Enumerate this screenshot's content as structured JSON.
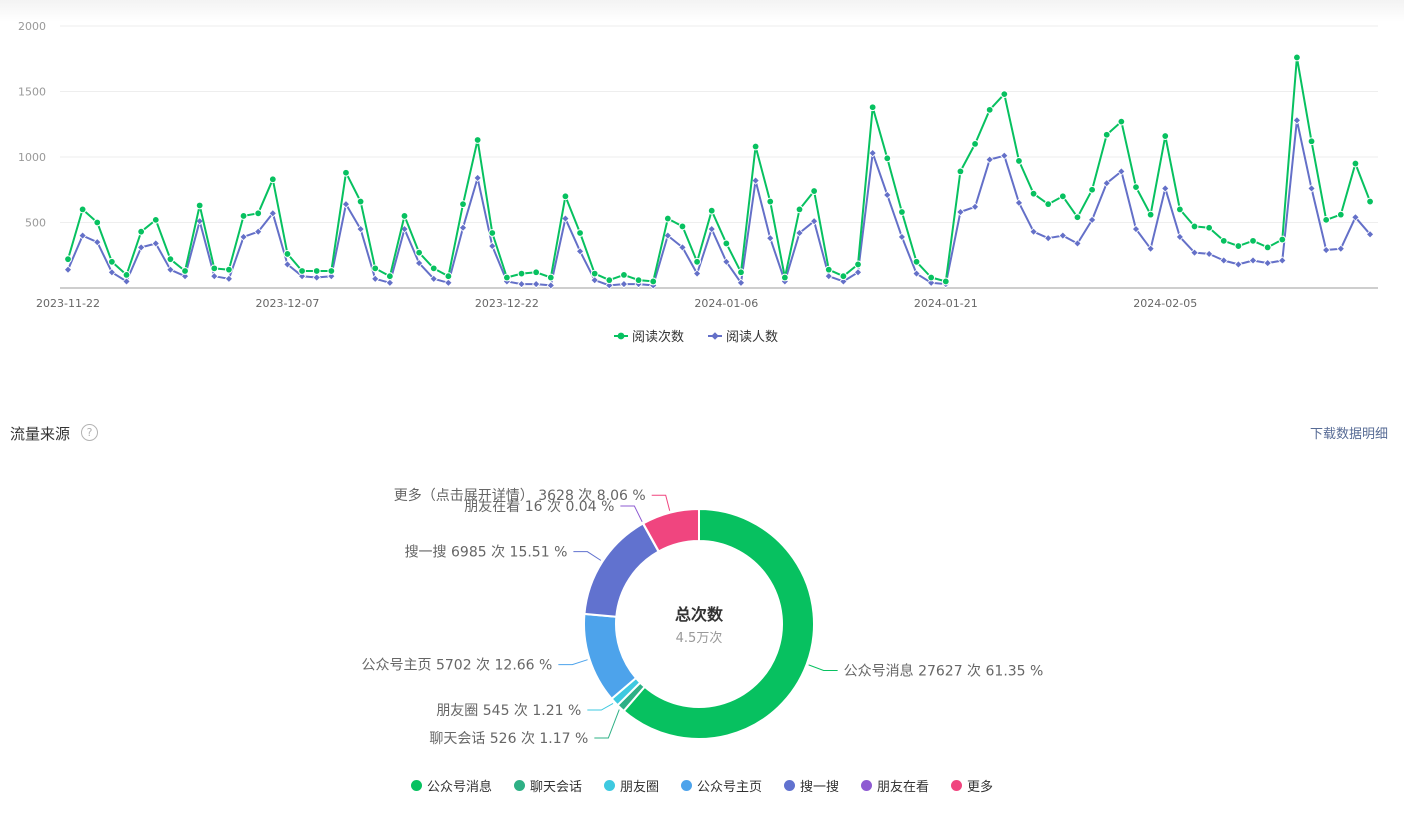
{
  "colors": {
    "reads": "#07c160",
    "readers": "#6470c8",
    "axis": "#999999",
    "grid": "#eeeeee",
    "link": "#576b95"
  },
  "chart_data": [
    {
      "type": "line",
      "ylim": [
        0,
        2000
      ],
      "yticks": [
        2000,
        1500,
        1000,
        500
      ],
      "x_tick_labels": [
        "2023-11-22",
        "2023-12-07",
        "2023-12-22",
        "2024-01-06",
        "2024-01-21",
        "2024-02-05"
      ],
      "x_start": "2023-11-22",
      "legend_position": "bottom-center",
      "series": [
        {
          "name": "阅读次数",
          "marker": "circle",
          "values": [
            220,
            600,
            500,
            200,
            100,
            430,
            520,
            220,
            130,
            630,
            150,
            140,
            550,
            570,
            830,
            260,
            130,
            130,
            130,
            880,
            660,
            150,
            90,
            550,
            270,
            150,
            90,
            640,
            1130,
            420,
            80,
            110,
            120,
            80,
            700,
            420,
            110,
            60,
            100,
            60,
            50,
            530,
            470,
            200,
            590,
            340,
            120,
            1080,
            660,
            80,
            600,
            740,
            140,
            90,
            180,
            1380,
            990,
            580,
            200,
            80,
            50,
            890,
            1100,
            1360,
            1480,
            970,
            720,
            640,
            700,
            540,
            750,
            1170,
            1270,
            770,
            560,
            1160,
            600,
            470,
            460,
            360,
            320,
            360,
            310,
            370,
            1760,
            1120,
            520,
            560,
            950,
            660
          ]
        },
        {
          "name": "阅读人数",
          "marker": "diamond",
          "values": [
            140,
            400,
            350,
            120,
            50,
            310,
            340,
            140,
            90,
            510,
            90,
            70,
            390,
            430,
            570,
            180,
            90,
            80,
            90,
            640,
            450,
            70,
            40,
            450,
            190,
            70,
            40,
            460,
            840,
            320,
            50,
            30,
            30,
            20,
            530,
            280,
            60,
            20,
            30,
            30,
            20,
            400,
            310,
            110,
            450,
            200,
            40,
            820,
            380,
            50,
            420,
            510,
            90,
            50,
            120,
            1030,
            710,
            390,
            110,
            40,
            30,
            580,
            620,
            980,
            1010,
            650,
            430,
            380,
            400,
            340,
            520,
            800,
            890,
            450,
            300,
            760,
            390,
            270,
            260,
            210,
            180,
            210,
            190,
            210,
            1280,
            760,
            290,
            300,
            540,
            410
          ]
        }
      ]
    },
    {
      "type": "pie",
      "donut": true,
      "center_title": "总次数",
      "center_value": "4.5万次",
      "legend_position": "bottom-center",
      "slices": [
        {
          "name": "公众号消息",
          "value": 27627,
          "percent": 61.35,
          "color": "#07c160",
          "label": "公众号消息 27627 次 61.35 %"
        },
        {
          "name": "聊天会话",
          "value": 526,
          "percent": 1.17,
          "color": "#2eb085",
          "label": "聊天会话 526 次 1.17 %"
        },
        {
          "name": "朋友圈",
          "value": 545,
          "percent": 1.21,
          "color": "#3ec9e0",
          "label": "朋友圈 545 次 1.21 %"
        },
        {
          "name": "公众号主页",
          "value": 5702,
          "percent": 12.66,
          "color": "#4da3eb",
          "label": "公众号主页 5702 次 12.66 %"
        },
        {
          "name": "搜一搜",
          "value": 6985,
          "percent": 15.51,
          "color": "#6172cf",
          "label": "搜一搜 6985 次 15.51 %"
        },
        {
          "name": "朋友在看",
          "value": 16,
          "percent": 0.04,
          "color": "#8e5bd2",
          "label": "朋友在看 16 次 0.04 %"
        },
        {
          "name": "更多",
          "value": 3628,
          "percent": 8.06,
          "color": "#f0457f",
          "label": "更多（点击展开详情） 3628 次 8.06 %"
        }
      ]
    }
  ],
  "traffic_section": {
    "title": "流量来源",
    "help_icon": "question-circle-icon",
    "help_glyph": "?",
    "download_label": "下载数据明细"
  }
}
